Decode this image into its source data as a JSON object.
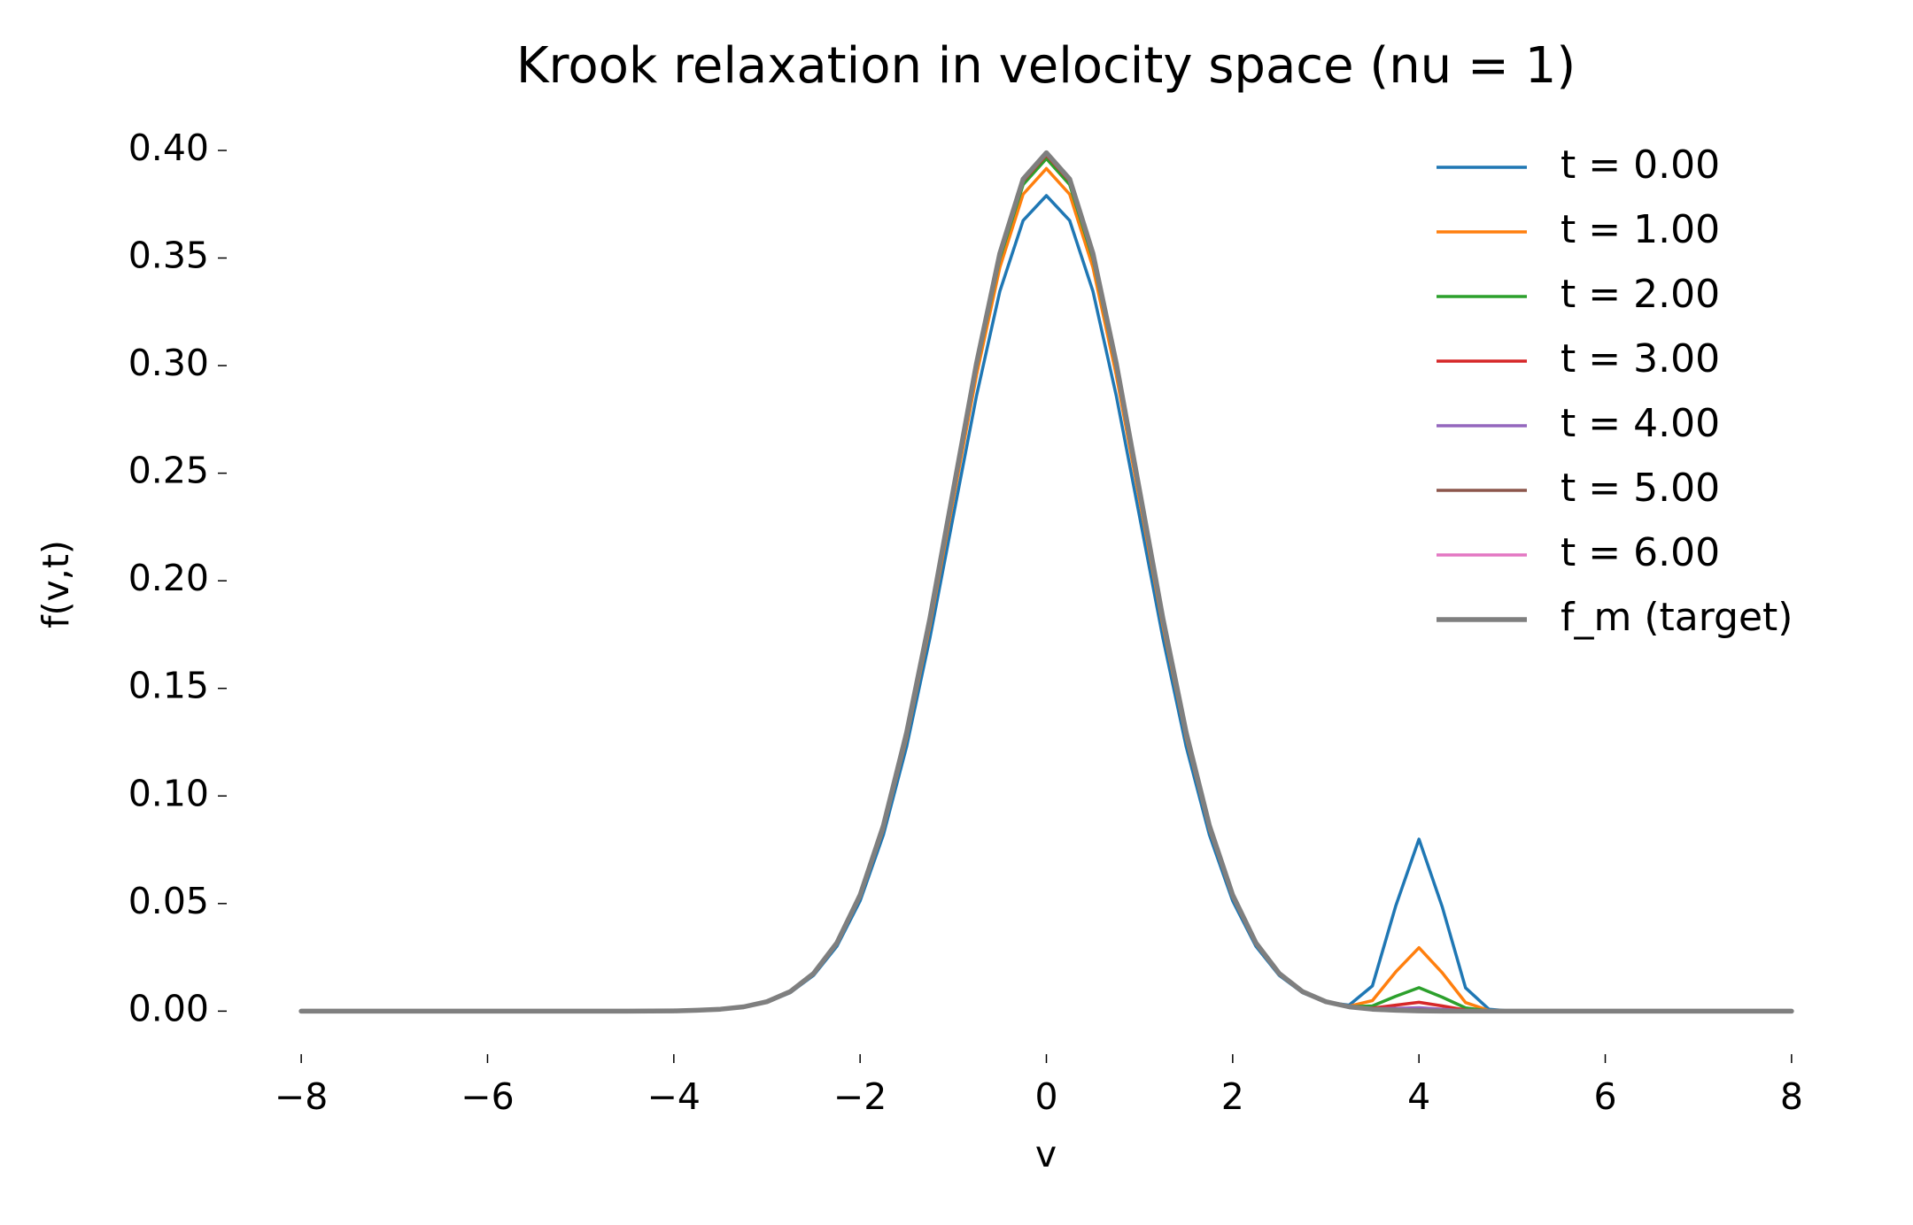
{
  "chart_data": {
    "type": "line",
    "title": "Krook relaxation in velocity space (nu = 1)",
    "x_label": "v",
    "y_label": "f(v,t)",
    "grid": false,
    "legend_position": "upper right",
    "xlim": [
      -8.8,
      8.8
    ],
    "ylim": [
      -0.02,
      0.4189
    ],
    "xticks": [
      {
        "value": -8,
        "label": "−8"
      },
      {
        "value": -6,
        "label": "−6"
      },
      {
        "value": -4,
        "label": "−4"
      },
      {
        "value": -2,
        "label": "−2"
      },
      0,
      2,
      4,
      6,
      8
    ],
    "yticks": [
      {
        "value": 0,
        "label": "0.00"
      },
      {
        "value": 0.05,
        "label": "0.05"
      },
      {
        "value": 0.1,
        "label": "0.10"
      },
      {
        "value": 0.15,
        "label": "0.15"
      },
      {
        "value": 0.2,
        "label": "0.20"
      },
      {
        "value": 0.25,
        "label": "0.25"
      },
      {
        "value": 0.3,
        "label": "0.30"
      },
      {
        "value": 0.35,
        "label": "0.35"
      },
      {
        "value": 0.4,
        "label": "0.40"
      }
    ],
    "x": [
      -8,
      -6,
      -5,
      -4.5,
      -4,
      -3.75,
      -3.5,
      -3.25,
      -3,
      -2.75,
      -2.5,
      -2.25,
      -2,
      -1.75,
      -1.5,
      -1.25,
      -1,
      -0.75,
      -0.5,
      -0.25,
      0,
      0.25,
      0.5,
      0.75,
      1,
      1.25,
      1.5,
      1.75,
      2,
      2.25,
      2.5,
      2.75,
      3,
      3.25,
      3.5,
      3.75,
      4,
      4.25,
      4.5,
      4.75,
      5,
      5.5,
      6,
      7,
      8
    ],
    "series": [
      {
        "name": "t = 0.00",
        "color": "#1f77b4",
        "values": [
          0,
          0,
          0,
          0,
          0.0001,
          0.0004,
          0.0009,
          0.0019,
          0.0042,
          0.0086,
          0.0166,
          0.0301,
          0.0513,
          0.082,
          0.123,
          0.1735,
          0.2299,
          0.286,
          0.3345,
          0.3674,
          0.379,
          0.3674,
          0.3345,
          0.286,
          0.2299,
          0.1735,
          0.123,
          0.082,
          0.0513,
          0.0301,
          0.0166,
          0.0086,
          0.0042,
          0.0028,
          0.0117,
          0.0488,
          0.0799,
          0.0484,
          0.0108,
          0.0009,
          0,
          0,
          0,
          0,
          0
        ]
      },
      {
        "name": "t = 1.00",
        "color": "#ff7f0e",
        "values": [
          0,
          0,
          0,
          0,
          0.0001,
          0.0004,
          0.0009,
          0.002,
          0.0043,
          0.0089,
          0.0172,
          0.0311,
          0.053,
          0.0847,
          0.1271,
          0.1792,
          0.2376,
          0.2956,
          0.3456,
          0.3796,
          0.3916,
          0.3796,
          0.3456,
          0.2956,
          0.2376,
          0.1792,
          0.1271,
          0.0847,
          0.053,
          0.0311,
          0.0172,
          0.0089,
          0.0043,
          0.0023,
          0.0049,
          0.0182,
          0.0295,
          0.0178,
          0.004,
          0.0003,
          0,
          0,
          0,
          0,
          0
        ]
      },
      {
        "name": "t = 2.00",
        "color": "#2ca02c",
        "values": [
          0,
          0,
          0,
          0,
          0.0001,
          0.0004,
          0.0009,
          0.002,
          0.0044,
          0.009,
          0.0174,
          0.0315,
          0.0536,
          0.0857,
          0.1286,
          0.1814,
          0.2404,
          0.2991,
          0.3497,
          0.3841,
          0.3962,
          0.3841,
          0.3497,
          0.2991,
          0.2404,
          0.1814,
          0.1286,
          0.0857,
          0.0536,
          0.0315,
          0.0174,
          0.009,
          0.0044,
          0.0021,
          0.0024,
          0.0069,
          0.0109,
          0.0065,
          0.0015,
          0.0001,
          0,
          0,
          0,
          0,
          0
        ]
      },
      {
        "name": "t = 3.00",
        "color": "#d62728",
        "values": [
          0,
          0,
          0,
          0,
          0.0001,
          0.0004,
          0.0009,
          0.002,
          0.0044,
          0.0091,
          0.0175,
          0.0316,
          0.0539,
          0.0861,
          0.1292,
          0.1821,
          0.2414,
          0.3004,
          0.3512,
          0.3857,
          0.3979,
          0.3857,
          0.3512,
          0.3004,
          0.2414,
          0.1821,
          0.1292,
          0.0861,
          0.0539,
          0.0316,
          0.0175,
          0.0091,
          0.0044,
          0.002,
          0.0014,
          0.0028,
          0.0041,
          0.0024,
          0.0005,
          0,
          0,
          0,
          0,
          0,
          0
        ]
      },
      {
        "name": "t = 4.00",
        "color": "#9467bd",
        "values": [
          0,
          0,
          0,
          0,
          0.0001,
          0.0004,
          0.0009,
          0.002,
          0.0044,
          0.0091,
          0.0175,
          0.0317,
          0.0539,
          0.0862,
          0.1294,
          0.1824,
          0.2418,
          0.3008,
          0.3518,
          0.3863,
          0.3985,
          0.3863,
          0.3518,
          0.3008,
          0.2418,
          0.1824,
          0.1294,
          0.0862,
          0.0539,
          0.0317,
          0.0175,
          0.0091,
          0.0044,
          0.002,
          0.0011,
          0.0013,
          0.0016,
          0.0009,
          0.0002,
          0,
          0,
          0,
          0,
          0,
          0
        ]
      },
      {
        "name": "t = 5.00",
        "color": "#8c564b",
        "values": [
          0,
          0,
          0,
          0,
          0.0001,
          0.0004,
          0.0009,
          0.002,
          0.0044,
          0.0091,
          0.0175,
          0.0317,
          0.054,
          0.0863,
          0.1295,
          0.1825,
          0.2419,
          0.301,
          0.352,
          0.3866,
          0.3988,
          0.3866,
          0.352,
          0.301,
          0.2419,
          0.1825,
          0.1295,
          0.0863,
          0.054,
          0.0317,
          0.0175,
          0.0091,
          0.0044,
          0.002,
          0.001,
          0.0007,
          0.0006,
          0.0003,
          0.0001,
          0,
          0,
          0,
          0,
          0,
          0
        ]
      },
      {
        "name": "t = 6.00",
        "color": "#e377c2",
        "values": [
          0,
          0,
          0,
          0,
          0.0001,
          0.0004,
          0.0009,
          0.002,
          0.0044,
          0.0091,
          0.0175,
          0.0317,
          0.054,
          0.0863,
          0.1295,
          0.1826,
          0.242,
          0.3011,
          0.3521,
          0.3867,
          0.3988,
          0.3867,
          0.3521,
          0.3011,
          0.242,
          0.1826,
          0.1295,
          0.0863,
          0.054,
          0.0317,
          0.0175,
          0.0091,
          0.0044,
          0.002,
          0.0009,
          0.0005,
          0.0003,
          0.0001,
          0,
          0,
          0,
          0,
          0,
          0,
          0
        ]
      },
      {
        "name": "f_m (target)",
        "color": "#7f7f7f",
        "values": [
          0,
          0,
          0,
          0,
          0.0001,
          0.0004,
          0.0009,
          0.002,
          0.0044,
          0.0091,
          0.0175,
          0.0317,
          0.054,
          0.0863,
          0.1295,
          0.1826,
          0.242,
          0.3011,
          0.3521,
          0.3867,
          0.3989,
          0.3867,
          0.3521,
          0.3011,
          0.242,
          0.1826,
          0.1295,
          0.0863,
          0.054,
          0.0317,
          0.0175,
          0.0091,
          0.0044,
          0.002,
          0.0009,
          0.0004,
          0.0001,
          0,
          0,
          0,
          0,
          0,
          0,
          0,
          0
        ]
      }
    ]
  }
}
